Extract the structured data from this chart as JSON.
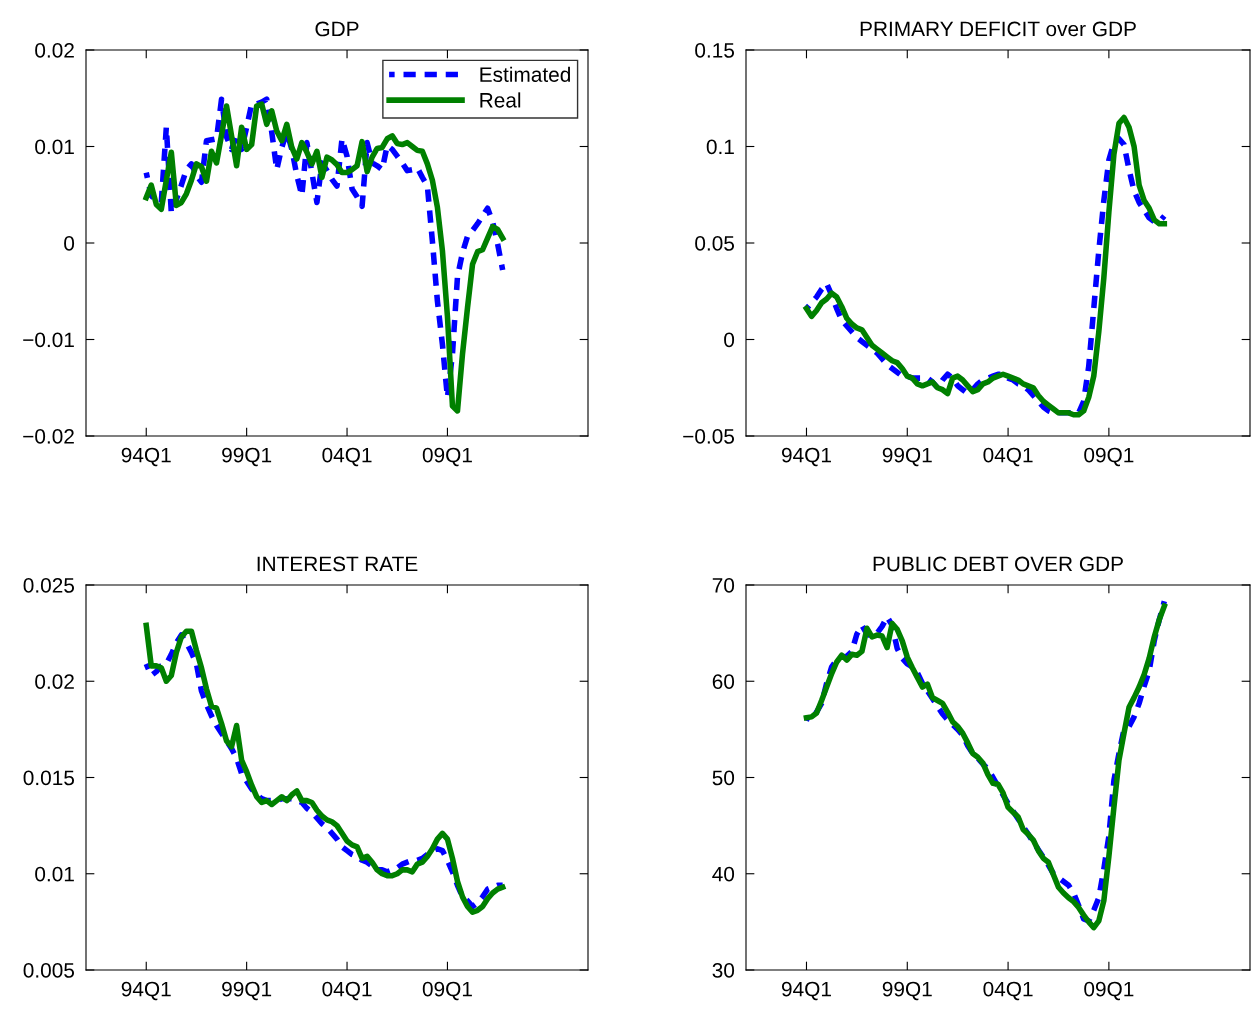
{
  "chart_data": [
    {
      "type": "line",
      "title": "GDP",
      "categories": [
        null,
        null,
        null,
        null,
        null,
        null,
        null,
        null,
        null,
        null,
        null,
        null,
        "94Q1",
        null,
        null,
        null,
        null,
        null,
        null,
        null,
        null,
        null,
        null,
        null,
        null,
        null,
        null,
        null,
        null,
        null,
        null,
        null,
        "99Q1",
        null,
        null,
        null,
        null,
        null,
        null,
        null,
        null,
        null,
        null,
        null,
        null,
        null,
        null,
        null,
        null,
        null,
        null,
        null,
        "04Q1",
        null,
        null,
        null,
        null,
        null,
        null,
        null,
        null,
        null,
        null,
        null,
        null,
        null,
        null,
        null,
        null,
        null,
        null,
        null,
        "09Q1",
        null,
        null,
        null,
        null,
        null,
        null,
        null,
        null,
        null,
        null,
        null,
        null,
        null,
        null,
        null,
        null,
        null,
        null,
        null,
        null,
        null,
        null,
        null,
        null,
        null,
        null,
        null
      ],
      "ylim": [
        -0.02,
        0.02
      ],
      "yticks": [
        0.02,
        0.01,
        0,
        {
          "value": -0.01,
          "label": "−0.01"
        },
        {
          "value": -0.02,
          "label": "−0.02"
        }
      ],
      "legend": "top right",
      "series": [
        {
          "name": "Estimated",
          "color": "#0000ff",
          "line_style": "dashed",
          "values": [
            null,
            null,
            null,
            null,
            null,
            null,
            null,
            null,
            null,
            null,
            null,
            null,
            0.0073,
            0.0049,
            0.0044,
            0.0042,
            0.012,
            0.0031,
            0.0045,
            0.006,
            0.0076,
            0.0082,
            0.007,
            0.0063,
            0.0106,
            0.0107,
            0.0108,
            0.0149,
            0.011,
            0.0097,
            0.0113,
            0.0097,
            0.012,
            0.0144,
            0.0144,
            0.0146,
            0.0149,
            0.0115,
            0.0076,
            0.0099,
            0.0115,
            0.0097,
            0.007,
            0.0049,
            0.0104,
            0.0073,
            0.0042,
            0.0083,
            0.0075,
            0.0066,
            0.0059,
            0.0108,
            0.009,
            0.0056,
            0.0048,
            0.0038,
            0.0104,
            0.0083,
            0.008,
            0.0076,
            0.0101,
            0.0097,
            0.009,
            0.0083,
            0.0075,
            0.0076,
            0.0078,
            0.0068,
            0.0059,
            0.0002,
            -0.006,
            -0.0105,
            -0.016,
            -0.0115,
            -0.0035,
            -0.001,
            0.0007,
            0.0013,
            0.002,
            0.0028,
            0.0036,
            0.0022,
            -0.0001,
            -0.0028,
            null,
            null,
            null,
            null,
            null,
            null,
            null,
            null,
            null,
            null,
            null,
            null,
            null,
            null,
            null,
            null
          ]
        },
        {
          "name": "Real",
          "color": "#008000",
          "line_style": "solid",
          "values": [
            null,
            null,
            null,
            null,
            null,
            null,
            null,
            null,
            null,
            null,
            null,
            null,
            0.0047,
            0.006,
            0.004,
            0.0035,
            0.0065,
            0.0094,
            0.0039,
            0.0042,
            0.0051,
            0.0065,
            0.0082,
            0.0079,
            0.0064,
            0.0095,
            0.0083,
            0.0112,
            0.0142,
            0.0111,
            0.008,
            0.012,
            0.0097,
            0.0102,
            0.0142,
            0.0144,
            0.0123,
            0.0137,
            0.0116,
            0.0106,
            0.0123,
            0.0099,
            0.0087,
            0.0104,
            0.0094,
            0.0082,
            0.0095,
            0.0068,
            0.0089,
            0.0086,
            0.0081,
            0.0073,
            0.0073,
            0.0076,
            0.008,
            0.0105,
            0.0074,
            0.0089,
            0.0098,
            0.0099,
            0.0108,
            0.0111,
            0.0103,
            0.0102,
            0.0104,
            0.01,
            0.0096,
            0.0095,
            0.0082,
            0.0065,
            0.0037,
            -0.0008,
            -0.0076,
            -0.0169,
            -0.0174,
            -0.0115,
            -0.0067,
            -0.0022,
            -0.0009,
            -0.0007,
            0.0005,
            0.0017,
            0.0014,
            0.0005,
            null,
            null,
            null,
            null,
            null,
            null,
            null,
            null,
            null,
            null,
            null,
            null,
            null,
            null,
            null,
            null
          ]
        }
      ]
    },
    {
      "type": "line",
      "title": "PRIMARY DEFICIT over GDP",
      "categories": [
        null,
        null,
        null,
        null,
        null,
        null,
        null,
        null,
        null,
        null,
        null,
        null,
        "94Q1",
        null,
        null,
        null,
        null,
        null,
        null,
        null,
        null,
        null,
        null,
        null,
        null,
        null,
        null,
        null,
        null,
        null,
        null,
        null,
        "99Q1",
        null,
        null,
        null,
        null,
        null,
        null,
        null,
        null,
        null,
        null,
        null,
        null,
        null,
        null,
        null,
        null,
        null,
        null,
        null,
        "04Q1",
        null,
        null,
        null,
        null,
        null,
        null,
        null,
        null,
        null,
        null,
        null,
        null,
        null,
        null,
        null,
        null,
        null,
        null,
        null,
        "09Q1",
        null,
        null,
        null,
        null,
        null,
        null,
        null,
        null,
        null,
        null,
        null,
        null,
        null,
        null,
        null,
        null,
        null,
        null,
        null,
        null,
        null,
        null,
        null,
        null,
        null,
        null,
        null
      ],
      "ylim": [
        -0.05,
        0.15
      ],
      "yticks": [
        0.15,
        0.1,
        0.05,
        0,
        {
          "value": -0.05,
          "label": "−0.05"
        }
      ],
      "series": [
        {
          "color": "#0000ff",
          "line_style": "dashed",
          "values": [
            null,
            null,
            null,
            null,
            null,
            null,
            null,
            null,
            null,
            null,
            null,
            null,
            0.016,
            0.019,
            0.022,
            0.026,
            0.029,
            0.023,
            0.016,
            0.01,
            0.007,
            0.004,
            0.001,
            -0.001,
            -0.003,
            -0.005,
            -0.007,
            -0.01,
            -0.013,
            -0.015,
            -0.017,
            -0.019,
            -0.019,
            -0.02,
            -0.02,
            -0.02,
            -0.02,
            -0.022,
            -0.025,
            -0.021,
            -0.018,
            -0.02,
            -0.024,
            -0.026,
            -0.028,
            -0.026,
            -0.023,
            -0.021,
            -0.02,
            -0.019,
            -0.018,
            -0.018,
            -0.02,
            -0.021,
            -0.023,
            -0.024,
            -0.026,
            -0.029,
            -0.032,
            -0.035,
            -0.037,
            -0.038,
            -0.038,
            -0.038,
            -0.038,
            -0.038,
            -0.038,
            -0.032,
            -0.014,
            0.016,
            0.046,
            0.072,
            0.093,
            0.102,
            0.104,
            0.101,
            0.088,
            0.077,
            0.071,
            0.067,
            0.063,
            0.061,
            0.061,
            0.064,
            null,
            null,
            null,
            null,
            null,
            null,
            null,
            null,
            null,
            null,
            null,
            null,
            null,
            null,
            null,
            null
          ]
        },
        {
          "color": "#008000",
          "line_style": "solid",
          "values": [
            null,
            null,
            null,
            null,
            null,
            null,
            null,
            null,
            null,
            null,
            null,
            null,
            0.016,
            0.012,
            0.015,
            0.019,
            0.021,
            0.024,
            0.022,
            0.017,
            0.011,
            0.008,
            0.006,
            0.005,
            0.001,
            -0.003,
            -0.005,
            -0.007,
            -0.009,
            -0.011,
            -0.012,
            -0.015,
            -0.019,
            -0.02,
            -0.023,
            -0.024,
            -0.023,
            -0.022,
            -0.025,
            -0.026,
            -0.028,
            -0.02,
            -0.019,
            -0.021,
            -0.024,
            -0.027,
            -0.026,
            -0.023,
            -0.022,
            -0.02,
            -0.019,
            -0.018,
            -0.019,
            -0.02,
            -0.021,
            -0.023,
            -0.024,
            -0.025,
            -0.029,
            -0.032,
            -0.034,
            -0.036,
            -0.038,
            -0.038,
            -0.038,
            -0.039,
            -0.039,
            -0.037,
            -0.03,
            -0.019,
            0.004,
            0.032,
            0.066,
            0.096,
            0.112,
            0.115,
            0.11,
            0.1,
            0.08,
            0.072,
            0.068,
            0.062,
            0.06,
            0.06,
            null,
            null,
            null,
            null,
            null,
            null,
            null,
            null,
            null,
            null,
            null,
            null,
            null,
            null,
            null,
            null
          ]
        }
      ]
    },
    {
      "type": "line",
      "title": "INTEREST RATE",
      "categories": [
        null,
        null,
        null,
        null,
        null,
        null,
        null,
        null,
        null,
        null,
        null,
        null,
        "94Q1",
        null,
        null,
        null,
        null,
        null,
        null,
        null,
        null,
        null,
        null,
        null,
        null,
        null,
        null,
        null,
        null,
        null,
        null,
        null,
        "99Q1",
        null,
        null,
        null,
        null,
        null,
        null,
        null,
        null,
        null,
        null,
        null,
        null,
        null,
        null,
        null,
        null,
        null,
        null,
        null,
        "04Q1",
        null,
        null,
        null,
        null,
        null,
        null,
        null,
        null,
        null,
        null,
        null,
        null,
        null,
        null,
        null,
        null,
        null,
        null,
        null,
        "09Q1",
        null,
        null,
        null,
        null,
        null,
        null,
        null,
        null,
        null,
        null,
        null,
        null,
        null,
        null,
        null,
        null,
        null,
        null,
        null,
        null,
        null,
        null,
        null,
        null,
        null,
        null,
        null
      ],
      "ylim": [
        0.005,
        0.025
      ],
      "yticks": [
        0.025,
        0.02,
        0.015,
        0.01,
        0.005
      ],
      "series": [
        {
          "color": "#0000ff",
          "line_style": "dashed",
          "values": [
            null,
            null,
            null,
            null,
            null,
            null,
            null,
            null,
            null,
            null,
            null,
            null,
            0.0209,
            0.0203,
            0.0205,
            0.0208,
            0.0209,
            0.0214,
            0.022,
            0.0224,
            0.022,
            0.0215,
            0.0209,
            0.0195,
            0.0188,
            0.0182,
            0.0177,
            0.0173,
            0.0169,
            0.0165,
            0.016,
            0.0152,
            0.0148,
            0.0144,
            0.0141,
            0.0139,
            0.0138,
            0.0138,
            0.0138,
            0.0139,
            0.0139,
            0.0139,
            0.0138,
            0.0137,
            0.0134,
            0.0132,
            0.0129,
            0.0126,
            0.0124,
            0.0121,
            0.0118,
            0.0114,
            0.0112,
            0.011,
            0.0109,
            0.0107,
            0.0106,
            0.0104,
            0.0102,
            0.0102,
            0.0101,
            0.0102,
            0.0103,
            0.0105,
            0.0106,
            0.0107,
            0.0107,
            0.0108,
            0.011,
            0.0112,
            0.0113,
            0.0112,
            0.0107,
            0.0101,
            0.0094,
            0.0088,
            0.0086,
            0.0083,
            0.0085,
            0.0088,
            0.0092,
            0.0093,
            0.0094,
            0.0094,
            null,
            null,
            null,
            null,
            null,
            null,
            null,
            null,
            null,
            null,
            null,
            null,
            null,
            null,
            null,
            null
          ]
        },
        {
          "color": "#008000",
          "line_style": "solid",
          "values": [
            null,
            null,
            null,
            null,
            null,
            null,
            null,
            null,
            null,
            null,
            null,
            null,
            0.0229,
            0.0208,
            0.0208,
            0.0207,
            0.02,
            0.0203,
            0.0215,
            0.0223,
            0.0226,
            0.0226,
            0.0216,
            0.0207,
            0.0196,
            0.0187,
            0.0186,
            0.0178,
            0.0169,
            0.0166,
            0.0177,
            0.0159,
            0.0153,
            0.0146,
            0.014,
            0.0137,
            0.0138,
            0.0136,
            0.0138,
            0.014,
            0.0138,
            0.0141,
            0.0143,
            0.0138,
            0.0138,
            0.0137,
            0.0133,
            0.013,
            0.0128,
            0.0127,
            0.0125,
            0.0121,
            0.0117,
            0.0115,
            0.0114,
            0.0108,
            0.0109,
            0.0106,
            0.0102,
            0.01,
            0.0099,
            0.0099,
            0.01,
            0.0102,
            0.0102,
            0.0101,
            0.0105,
            0.0106,
            0.0109,
            0.0113,
            0.0118,
            0.0121,
            0.0118,
            0.0108,
            0.0096,
            0.0088,
            0.0083,
            0.008,
            0.0081,
            0.0083,
            0.0087,
            0.009,
            0.0092,
            0.0093,
            null,
            null,
            null,
            null,
            null,
            null,
            null,
            null,
            null,
            null,
            null,
            null,
            null,
            null,
            null,
            null
          ]
        }
      ]
    },
    {
      "type": "line",
      "title": "PUBLIC DEBT OVER GDP",
      "categories": [
        null,
        null,
        null,
        null,
        null,
        null,
        null,
        null,
        null,
        null,
        null,
        null,
        "94Q1",
        null,
        null,
        null,
        null,
        null,
        null,
        null,
        null,
        null,
        null,
        null,
        null,
        null,
        null,
        null,
        null,
        null,
        null,
        null,
        "99Q1",
        null,
        null,
        null,
        null,
        null,
        null,
        null,
        null,
        null,
        null,
        null,
        null,
        null,
        null,
        null,
        null,
        null,
        null,
        null,
        "04Q1",
        null,
        null,
        null,
        null,
        null,
        null,
        null,
        null,
        null,
        null,
        null,
        null,
        null,
        null,
        null,
        null,
        null,
        null,
        null,
        "09Q1",
        null,
        null,
        null,
        null,
        null,
        null,
        null,
        null,
        null,
        null,
        null,
        null,
        null,
        null,
        null,
        null,
        null,
        null,
        null,
        null,
        null,
        null,
        null,
        null,
        null,
        null,
        null
      ],
      "ylim": [
        30,
        70
      ],
      "yticks": [
        70,
        60,
        50,
        40,
        30
      ],
      "series": [
        {
          "color": "#0000ff",
          "line_style": "dashed",
          "values": [
            null,
            null,
            null,
            null,
            null,
            null,
            null,
            null,
            null,
            null,
            null,
            null,
            56.2,
            56.0,
            56.8,
            57.7,
            59.8,
            61.5,
            62.2,
            62.5,
            62.6,
            63.1,
            64.9,
            65.8,
            64.9,
            64.7,
            65.0,
            65.7,
            66.7,
            65.8,
            63.4,
            62.4,
            61.8,
            61.5,
            60.9,
            59.8,
            59.0,
            58.2,
            57.4,
            56.6,
            56.0,
            55.5,
            55.0,
            54.4,
            53.3,
            52.5,
            52.0,
            51.4,
            50.9,
            50.0,
            49.1,
            48.2,
            47.3,
            46.5,
            45.7,
            44.9,
            44.1,
            43.3,
            42.5,
            41.7,
            40.9,
            40.0,
            39.6,
            39.2,
            38.8,
            38.0,
            36.7,
            35.3,
            35.1,
            36.2,
            37.5,
            40.5,
            43.9,
            49.7,
            52.5,
            55.0,
            55.3,
            56.3,
            57.7,
            59.5,
            61.1,
            64.2,
            66.4,
            68.3,
            null,
            null,
            null,
            null,
            null,
            null,
            null,
            null,
            null,
            null,
            null,
            null,
            null,
            null,
            null,
            null
          ]
        },
        {
          "color": "#008000",
          "line_style": "solid",
          "values": [
            null,
            null,
            null,
            null,
            null,
            null,
            null,
            null,
            null,
            null,
            null,
            null,
            56.2,
            56.3,
            56.7,
            58.0,
            59.4,
            60.8,
            62.0,
            62.7,
            62.2,
            62.8,
            62.7,
            63.1,
            65.5,
            64.6,
            64.8,
            64.7,
            63.5,
            66.0,
            65.4,
            64.2,
            62.5,
            61.4,
            60.4,
            59.4,
            59.7,
            58.3,
            58.0,
            57.7,
            56.8,
            55.8,
            55.3,
            54.6,
            53.6,
            52.5,
            52.1,
            51.5,
            50.3,
            49.4,
            49.3,
            48.4,
            46.9,
            46.4,
            45.9,
            44.6,
            44.1,
            43.5,
            42.4,
            41.6,
            41.2,
            39.9,
            38.6,
            38.0,
            37.5,
            37.1,
            36.5,
            35.7,
            35.0,
            34.4,
            35.1,
            37.2,
            41.8,
            46.9,
            51.8,
            54.6,
            57.3,
            58.3,
            59.4,
            60.7,
            62.4,
            64.6,
            66.4,
            67.8,
            null,
            null,
            null,
            null,
            null,
            null,
            null,
            null,
            null,
            null,
            null,
            null,
            null,
            null,
            null,
            null
          ]
        }
      ]
    }
  ]
}
